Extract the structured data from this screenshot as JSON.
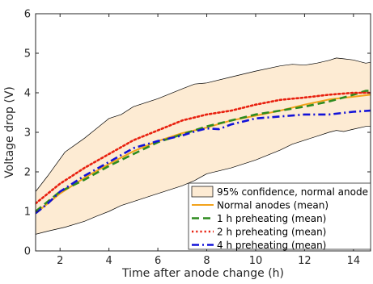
{
  "chart_data": {
    "type": "line",
    "title": "",
    "xlabel": "Time after anode change (h)",
    "ylabel": "Voltage drop (V)",
    "xlim": [
      1,
      14.7
    ],
    "ylim": [
      0,
      6
    ],
    "xticks": [
      "2",
      "4",
      "6",
      "8",
      "10",
      "12",
      "14"
    ],
    "yticks": [
      "0",
      "1",
      "2",
      "3",
      "4",
      "5",
      "6"
    ],
    "grid": false,
    "legend_position": "bottom-right",
    "band": {
      "name": "95% confidence, normal anode",
      "fill": "#fdebd3",
      "edge": "#000000",
      "x": [
        1,
        1.5,
        2.2,
        3,
        3.5,
        4,
        4.5,
        5,
        6,
        7,
        7.5,
        8,
        9,
        10,
        11,
        11.5,
        12,
        12.5,
        13,
        13.3,
        13.6,
        14,
        14.5,
        14.7
      ],
      "upper": [
        1.5,
        1.9,
        2.5,
        2.85,
        3.1,
        3.35,
        3.45,
        3.65,
        3.85,
        4.1,
        4.22,
        4.25,
        4.4,
        4.55,
        4.68,
        4.72,
        4.7,
        4.75,
        4.82,
        4.88,
        4.86,
        4.83,
        4.75,
        4.77
      ],
      "lower": [
        0.42,
        0.5,
        0.6,
        0.75,
        0.88,
        1.0,
        1.15,
        1.25,
        1.45,
        1.65,
        1.78,
        1.95,
        2.1,
        2.3,
        2.55,
        2.7,
        2.8,
        2.9,
        3.0,
        3.05,
        3.02,
        3.08,
        3.15,
        3.15
      ]
    },
    "series": [
      {
        "name": "Normal anodes (mean)",
        "color": "#f2a21a",
        "dash": "solid",
        "x": [
          1,
          1.5,
          2,
          3,
          4,
          5,
          6,
          7,
          8,
          9,
          10,
          11,
          12,
          13,
          14,
          14.7
        ],
        "values": [
          0.95,
          1.2,
          1.45,
          1.85,
          2.2,
          2.52,
          2.78,
          2.98,
          3.12,
          3.3,
          3.42,
          3.55,
          3.7,
          3.83,
          3.9,
          3.95
        ]
      },
      {
        "name": "1 h preheating (mean)",
        "color": "#2e8b1f",
        "dash": "dashed",
        "x": [
          1,
          1.5,
          2,
          3,
          4,
          5,
          6,
          7,
          7.5,
          8,
          9,
          10,
          11,
          12,
          13,
          14,
          14.5,
          14.7
        ],
        "values": [
          1.0,
          1.25,
          1.5,
          1.8,
          2.15,
          2.45,
          2.75,
          2.95,
          3.05,
          3.15,
          3.3,
          3.45,
          3.55,
          3.65,
          3.78,
          3.95,
          4.05,
          4.05
        ]
      },
      {
        "name": "2 h preheating (mean)",
        "color": "#e8200f",
        "dash": "dotted",
        "x": [
          1,
          1.5,
          2,
          3,
          4,
          5,
          6,
          7,
          8,
          9,
          10,
          11,
          12,
          13,
          14,
          14.7
        ],
        "values": [
          1.2,
          1.45,
          1.7,
          2.1,
          2.45,
          2.8,
          3.05,
          3.3,
          3.45,
          3.55,
          3.7,
          3.82,
          3.88,
          3.95,
          4.0,
          4.0
        ]
      },
      {
        "name": "4 h preheating (mean)",
        "color": "#1212d8",
        "dash": "dashdot",
        "x": [
          1,
          1.5,
          2,
          3,
          4,
          5,
          6,
          7,
          7.5,
          8,
          8.5,
          9,
          10,
          11,
          12,
          13,
          14,
          14.7
        ],
        "values": [
          0.95,
          1.2,
          1.5,
          1.9,
          2.25,
          2.6,
          2.78,
          2.92,
          3.02,
          3.1,
          3.08,
          3.2,
          3.35,
          3.4,
          3.45,
          3.45,
          3.52,
          3.55
        ]
      }
    ]
  }
}
